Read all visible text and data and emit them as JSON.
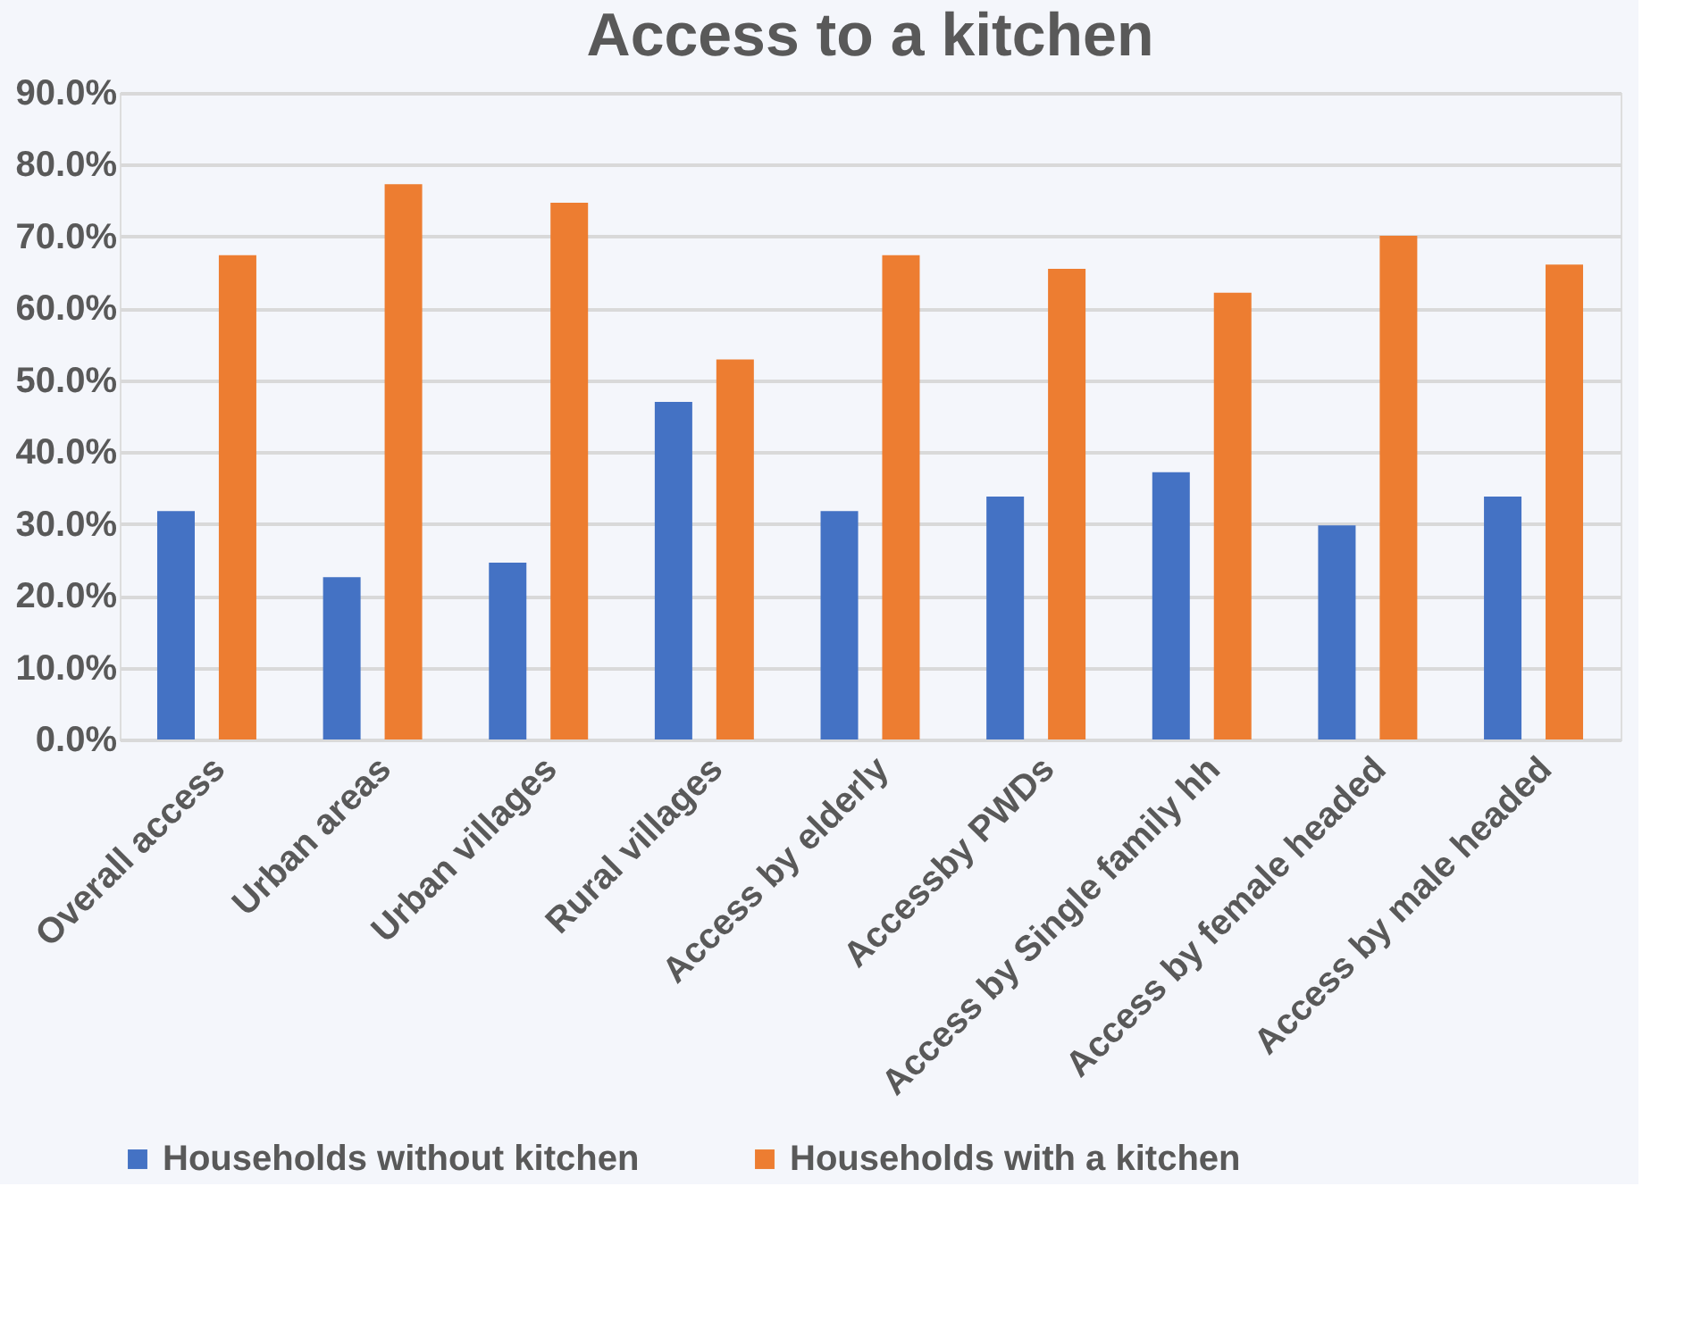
{
  "chart_data": {
    "type": "bar",
    "title": "Access to a kitchen",
    "categories": [
      "Overall access",
      "Urban areas",
      "Urban villages",
      "Rural villages",
      "Access by elderly",
      "Accessby PWDs",
      "Access by Single family  hh",
      "Access by female headed",
      "Access by male headed"
    ],
    "series": [
      {
        "name": "Households without kitchen",
        "color": "#4472c4",
        "values": [
          31.8,
          22.6,
          24.6,
          47.0,
          31.8,
          33.8,
          37.2,
          29.8,
          33.8
        ]
      },
      {
        "name": "Households with a kitchen",
        "color": "#ed7d31",
        "values": [
          67.4,
          77.3,
          74.7,
          52.9,
          67.4,
          65.5,
          62.2,
          70.1,
          66.1
        ]
      }
    ],
    "ylim": [
      0,
      90
    ],
    "yticks": [
      {
        "value": 0,
        "label": "0.0%"
      },
      {
        "value": 10,
        "label": "10.0%"
      },
      {
        "value": 20,
        "label": "20.0%"
      },
      {
        "value": 30,
        "label": "30.0%"
      },
      {
        "value": 40,
        "label": "40.0%"
      },
      {
        "value": 50,
        "label": "50.0%"
      },
      {
        "value": 60,
        "label": "60.0%"
      },
      {
        "value": 70,
        "label": "70.0%"
      },
      {
        "value": 80,
        "label": "80.0%"
      },
      {
        "value": 90,
        "label": "90.0%"
      }
    ],
    "grid": "y",
    "legend": "bottom"
  }
}
